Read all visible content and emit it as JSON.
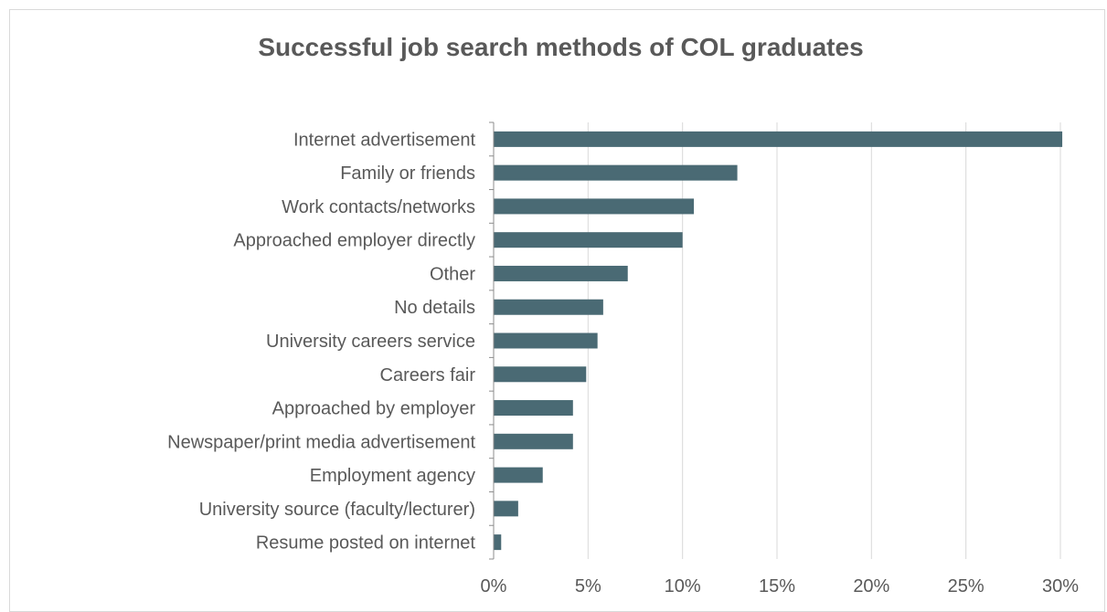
{
  "chart_data": {
    "type": "bar",
    "orientation": "horizontal",
    "title": "Successful job search methods of COL graduates",
    "xlabel": "",
    "ylabel": "",
    "categories": [
      "Internet advertisement",
      "Family or friends",
      "Work contacts/networks",
      "Approached employer directly",
      "Other",
      "No details",
      "University careers service",
      "Careers fair",
      "Approached by employer",
      "Newspaper/print media advertisement",
      "Employment agency",
      "University source (faculty/lecturer)",
      "Resume posted on internet"
    ],
    "values": [
      30.1,
      12.9,
      10.6,
      10.0,
      7.1,
      5.8,
      5.5,
      4.9,
      4.2,
      4.2,
      2.6,
      1.3,
      0.4
    ],
    "xlim": [
      0,
      30
    ],
    "ticks": [
      "0%",
      "5%",
      "10%",
      "15%",
      "20%",
      "25%",
      "30%"
    ],
    "grid": "vertical",
    "legend": "none",
    "bar_color": "#4a6a74"
  }
}
